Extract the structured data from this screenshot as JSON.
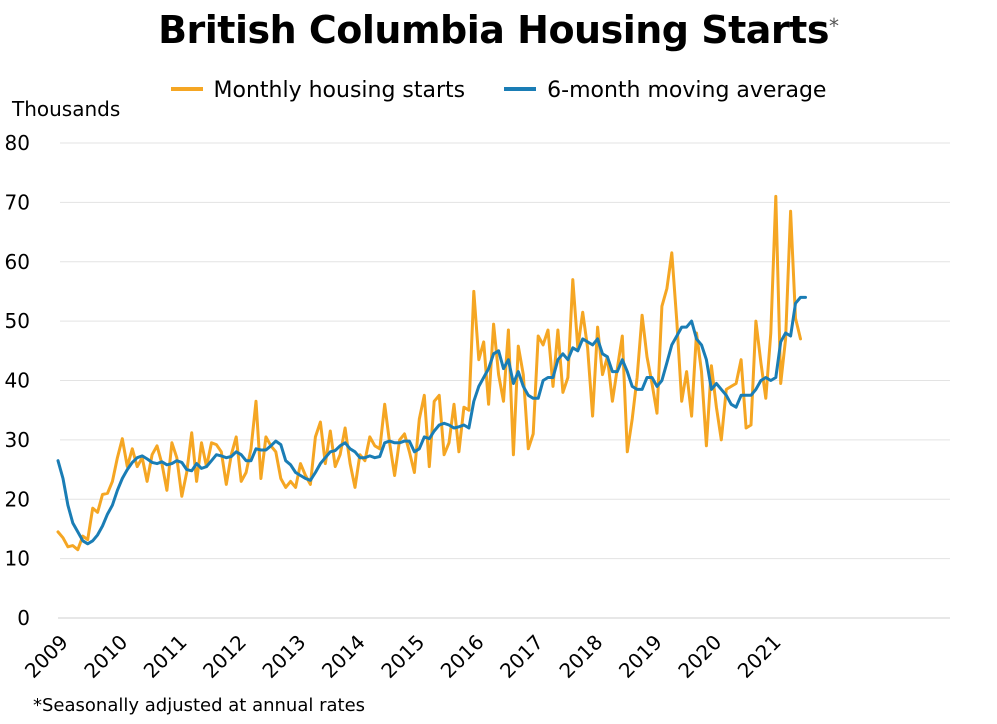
{
  "title": "British Columbia Housing Starts",
  "title_mark": "*",
  "legend": [
    {
      "label": "Monthly housing starts",
      "color": "#f5a623"
    },
    {
      "label": "6-month moving average",
      "color": "#1a7db5"
    }
  ],
  "y_unit": "Thousands",
  "footnote": "*Seasonally adjusted at annual rates",
  "chart_data": {
    "type": "line",
    "ylim": [
      0,
      80
    ],
    "yticks": [
      0,
      10,
      20,
      30,
      40,
      50,
      60,
      70,
      80
    ],
    "xticks": [
      "2009",
      "2010",
      "2011",
      "2012",
      "2013",
      "2014",
      "2015",
      "2016",
      "2017",
      "2018",
      "2019",
      "2020",
      "2021"
    ],
    "x_start": "2009-01",
    "grid": true,
    "legend_position": "top",
    "series": [
      {
        "name": "Monthly housing starts",
        "color": "#f5a623",
        "values": [
          14.5,
          13.5,
          12.0,
          12.2,
          11.5,
          13.8,
          13.2,
          18.5,
          17.8,
          20.8,
          21.0,
          23.0,
          27.0,
          30.2,
          25.5,
          28.5,
          25.5,
          27.0,
          23.0,
          27.5,
          29.0,
          26.0,
          21.5,
          29.5,
          27.0,
          20.5,
          24.5,
          31.2,
          23.0,
          29.5,
          25.5,
          29.5,
          29.2,
          28.0,
          22.5,
          27.5,
          30.5,
          23.0,
          24.5,
          28.5,
          36.5,
          23.5,
          30.5,
          29.0,
          28.0,
          23.5,
          22.0,
          23.0,
          22.0,
          26.0,
          24.0,
          22.5,
          30.5,
          33.0,
          26.0,
          31.5,
          25.5,
          27.5,
          32.0,
          26.0,
          22.0,
          27.5,
          26.5,
          30.5,
          29.0,
          28.5,
          36.0,
          29.5,
          24.0,
          30.0,
          31.0,
          28.0,
          24.5,
          33.5,
          37.5,
          25.5,
          36.5,
          37.5,
          27.5,
          29.5,
          36.0,
          28.0,
          35.5,
          35.0,
          55.0,
          43.5,
          46.5,
          36.0,
          49.5,
          41.0,
          36.5,
          48.5,
          27.5,
          45.8,
          41.0,
          28.5,
          31.0,
          47.5,
          46.0,
          48.5,
          39.0,
          48.5,
          38.0,
          40.5,
          57.0,
          45.5,
          51.5,
          45.5,
          34.0,
          49.0,
          41.0,
          44.0,
          36.5,
          42.0,
          47.5,
          28.0,
          33.5,
          40.5,
          51.0,
          44.0,
          39.5,
          34.5,
          52.5,
          55.5,
          61.5,
          50.0,
          36.5,
          41.5,
          34.0,
          48.0,
          41.5,
          29.0,
          42.5,
          35.5,
          30.0,
          38.5,
          39.0,
          39.5,
          43.5,
          32.0,
          32.5,
          50.0,
          43.0,
          37.0,
          48.0,
          71.0,
          39.5,
          47.0,
          68.5,
          50.5,
          47.0
        ],
        "ma": [
          26.5,
          23.5,
          19.0,
          16.0,
          14.5,
          13.0,
          12.5,
          13.0,
          14.0,
          15.5,
          17.5,
          19.0,
          21.5,
          23.5,
          25.0,
          26.2,
          27.0,
          27.3,
          26.8,
          26.2,
          26.0,
          26.3,
          25.8,
          26.0,
          26.5,
          26.2,
          25.0,
          24.8,
          26.0,
          25.2,
          25.5,
          26.5,
          27.5,
          27.3,
          27.0,
          27.2,
          28.0,
          27.5,
          26.5,
          26.5,
          28.5,
          28.3,
          28.3,
          29.0,
          29.8,
          29.2,
          26.5,
          25.8,
          24.5,
          24.0,
          23.5,
          23.2,
          24.5,
          26.0,
          27.0,
          28.0,
          28.2,
          29.0,
          29.5,
          28.5,
          28.0,
          27.0,
          27.0,
          27.3,
          27.0,
          27.2,
          29.5,
          29.8,
          29.5,
          29.5,
          29.8,
          29.8,
          28.0,
          28.5,
          30.5,
          30.2,
          31.5,
          32.5,
          32.8,
          32.5,
          32.0,
          32.2,
          32.5,
          32.0,
          36.5,
          39.0,
          40.5,
          42.0,
          44.5,
          45.0,
          42.0,
          43.5,
          39.5,
          41.5,
          39.0,
          37.5,
          37.0,
          37.0,
          40.0,
          40.5,
          40.5,
          43.5,
          44.5,
          43.5,
          45.5,
          45.0,
          47.0,
          46.5,
          46.0,
          47.0,
          44.5,
          44.0,
          41.5,
          41.5,
          43.5,
          41.5,
          39.0,
          38.5,
          38.5,
          40.5,
          40.5,
          39.0,
          40.0,
          43.0,
          46.0,
          47.5,
          49.0,
          49.0,
          50.0,
          47.0,
          46.0,
          43.5,
          38.5,
          39.5,
          38.5,
          37.5,
          36.0,
          35.5,
          37.5,
          37.5,
          37.5,
          38.5,
          40.0,
          40.5,
          40.0,
          40.5,
          46.5,
          48.0,
          47.5,
          53.0,
          54.0,
          54.0
        ]
      }
    ]
  }
}
